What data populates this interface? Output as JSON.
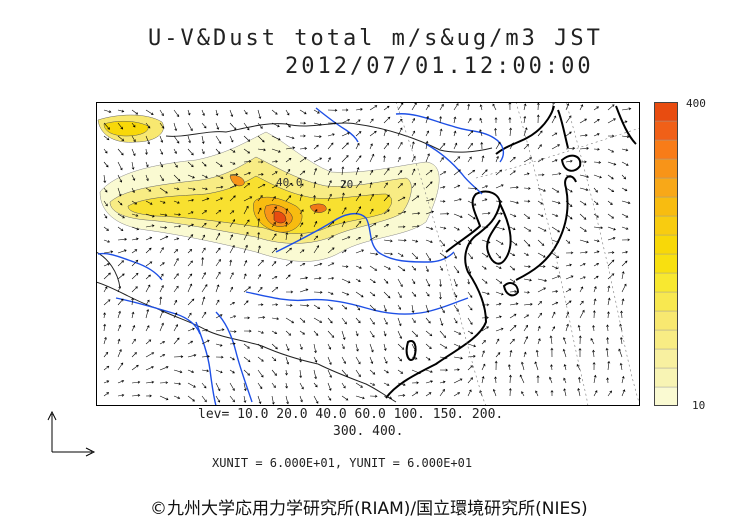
{
  "title": {
    "line1": "U-V&Dust total m/s&ug/m3 JST",
    "line2": "2012/07/01.12:00:00"
  },
  "colorbar": {
    "max_label": "400",
    "min_label": "10",
    "colors": [
      "#fafad2",
      "#f8f4b4",
      "#f8f0a0",
      "#f8ec84",
      "#f8e870",
      "#f8e850",
      "#f8e830",
      "#f8e010",
      "#f8d808",
      "#f8cc10",
      "#f8bc10",
      "#f8a818",
      "#f89418",
      "#f87c18",
      "#f06018",
      "#e84c10"
    ]
  },
  "contour_levels": {
    "line1": "lev= 10.0 20.0 40.0 60.0 100. 150. 200.",
    "line2": "300. 400."
  },
  "units_text": "XUNIT = 6.000E+01, YUNIT = 6.000E+01",
  "contour_labels": [
    "40.0",
    "20"
  ],
  "credit": "©九州大学応用力学研究所(RIAM)/国立環境研究所(NIES)",
  "map_colors": {
    "coast": "#000000",
    "rivers": "#1e50e6",
    "border": "#222222"
  }
}
